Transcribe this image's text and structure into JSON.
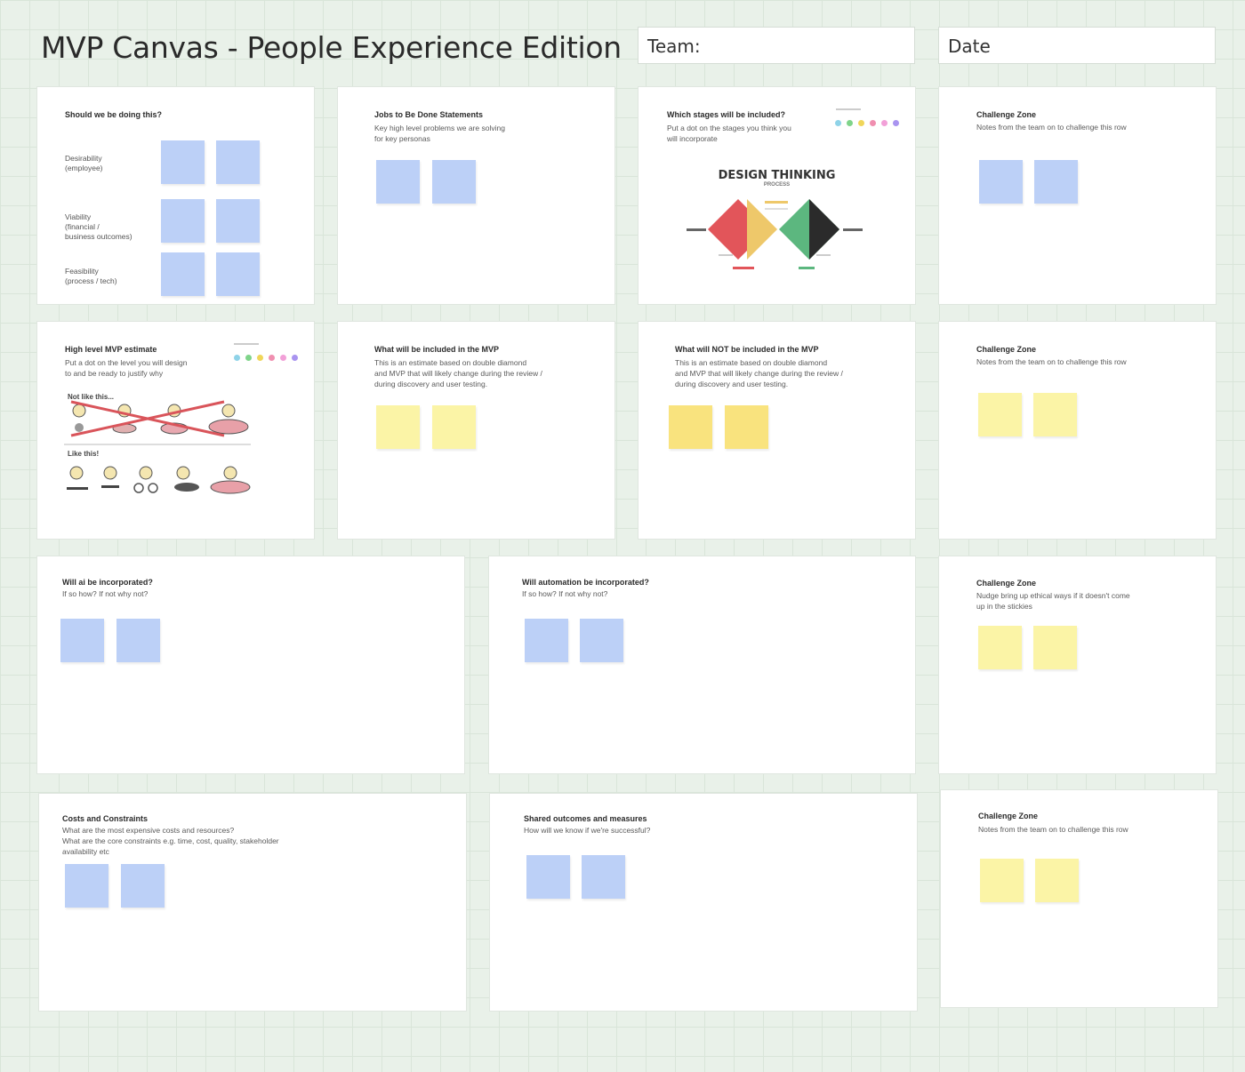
{
  "header": {
    "title": "MVP Canvas - People Experience Edition",
    "team_label": "Team:",
    "date_label": "Date"
  },
  "panels": {
    "desirability": {
      "title": "Should we be doing this?",
      "rows": [
        "Desirability\n(employee)",
        "Viability\n(financial /\nbusiness outcomes)",
        "Feasibility\n(process / tech)"
      ]
    },
    "jtbd": {
      "title": "Jobs to Be Done Statements",
      "desc": "Key high level problems we are solving\nfor key personas"
    },
    "stages": {
      "title": "Which stages will be included?",
      "desc": "Put a dot on the stages you think you\nwill incorporate",
      "graphic_title": "DESIGN THINKING",
      "graphic_subtitle": "PROCESS"
    },
    "challenge1": {
      "title": "Challenge Zone",
      "desc": "Notes from the team on to challenge this row"
    },
    "estimate": {
      "title": "High level MVP estimate",
      "desc": "Put a dot on the level you will design\nto and be ready to justify why",
      "not_like": "Not like this...",
      "like": "Like this!"
    },
    "included": {
      "title": "What will be included in the MVP",
      "desc": "This is an estimate based on double diamond\nand MVP that will likely change during the review /\nduring discovery and user testing."
    },
    "not_included": {
      "title": "What will NOT be included in the MVP",
      "desc": "This is an estimate based on double diamond\nand MVP that will likely change during the review /\nduring discovery and user testing."
    },
    "challenge2": {
      "title": "Challenge Zone",
      "desc": "Notes from the team on to challenge this row"
    },
    "ai": {
      "title": "Will ai be incorporated?",
      "desc": "If so how? If not why not?"
    },
    "automation": {
      "title": "Will automation be incorporated?",
      "desc": "If so how? If not why not?"
    },
    "challenge3": {
      "title": "Challenge Zone",
      "desc": "Nudge bring up ethical ways if it doesn't come\nup in the stickies"
    },
    "costs": {
      "title": "Costs and Constraints",
      "desc": "What are the most expensive costs and resources?\nWhat are the core constraints e.g. time, cost, quality, stakeholder\navailability etc"
    },
    "outcomes": {
      "title": "Shared outcomes and measures",
      "desc": "How will we know if we're successful?"
    },
    "challenge4": {
      "title": "Challenge Zone",
      "desc": "Notes from the team on to challenge this row"
    }
  },
  "colors": {
    "background": "#e9f1e9",
    "sticky_blue": "#bcd0f7",
    "sticky_yellow": "#fbf4a6",
    "dot_palette": [
      "#8fd3e8",
      "#7fd48a",
      "#f0d65a",
      "#f08fb0",
      "#f2a0d8",
      "#a994f0"
    ],
    "diamond_colors": [
      "#e2555a",
      "#eec86a",
      "#5cb77f",
      "#2b2b2b"
    ]
  }
}
